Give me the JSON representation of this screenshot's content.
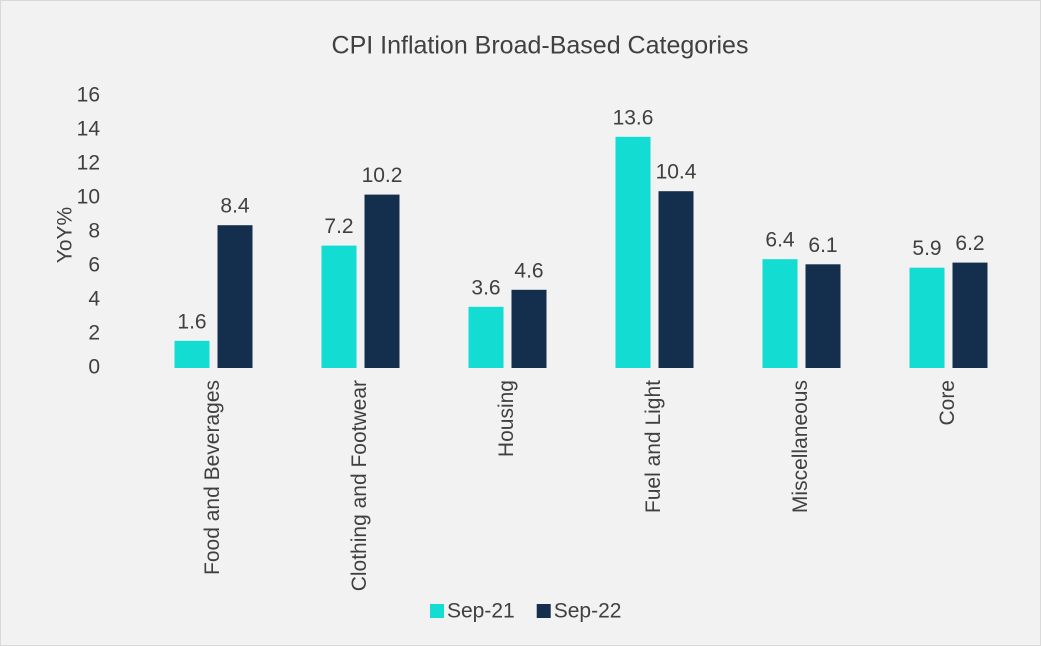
{
  "chart_data": {
    "type": "bar",
    "title": "CPI Inflation Broad-Based Categories",
    "y_label": "YoY%",
    "categories": [
      "Food and Beverages",
      "Clothing and Footwear",
      "Housing",
      "Fuel and Light",
      "Miscellaneous",
      "Core"
    ],
    "series": [
      {
        "name": "Sep-21",
        "color": "#13dcd3",
        "values": [
          1.6,
          7.2,
          3.6,
          13.6,
          6.4,
          5.9
        ]
      },
      {
        "name": "Sep-22",
        "color": "#142f4e",
        "values": [
          8.4,
          10.2,
          4.6,
          10.4,
          6.1,
          6.2
        ]
      }
    ],
    "ylim": [
      0,
      16
    ],
    "yticks": [
      0,
      2,
      4,
      6,
      8,
      10,
      12,
      14,
      16
    ],
    "grid": false,
    "legend": "bottom"
  }
}
